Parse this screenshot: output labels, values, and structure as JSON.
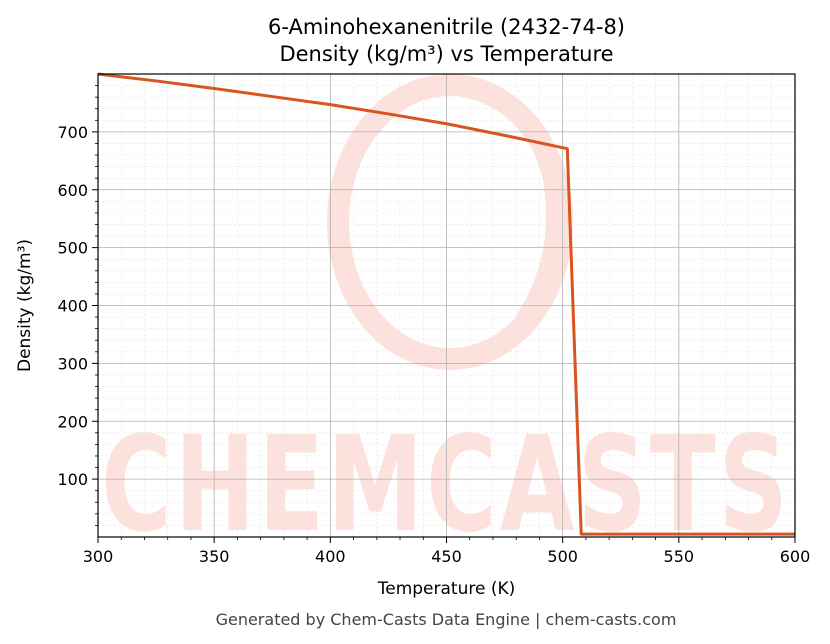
{
  "chart_data": {
    "type": "line",
    "title": "6-Aminohexanenitrile (2432-74-8)",
    "subtitle": "Density (kg/m³) vs Temperature",
    "xlabel": "Temperature (K)",
    "ylabel": "Density (kg/m³)",
    "xlim": [
      300,
      600
    ],
    "ylim": [
      0,
      800
    ],
    "xticks": [
      300,
      350,
      400,
      450,
      500,
      550,
      600
    ],
    "yticks": [
      100,
      200,
      300,
      400,
      500,
      600,
      700
    ],
    "grid": true,
    "line_color": "#d9541e",
    "series": [
      {
        "x": [
          300,
          325,
          350,
          375,
          400,
          425,
          450,
          475,
          502,
          508,
          600
        ],
        "y": [
          800,
          788,
          775,
          761,
          747,
          731,
          714,
          694,
          671,
          5,
          5
        ]
      }
    ]
  },
  "watermark": {
    "text": "CHEMCASTS",
    "color": "#fde1dc"
  },
  "footer": "Generated by Chem-Casts Data Engine | chem-casts.com"
}
